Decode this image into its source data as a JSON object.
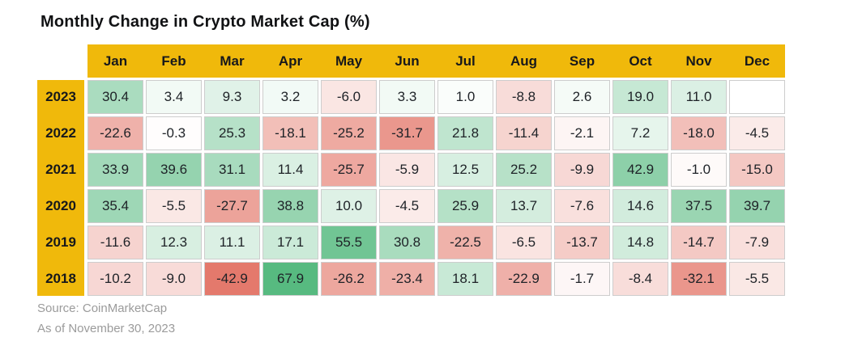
{
  "title": "Monthly Change in Crypto Market Cap (%)",
  "footer": {
    "source": "Source: CoinMarketCap",
    "as_of": "As of November 30, 2023"
  },
  "colors": {
    "header_gold": "#F0B90B",
    "positive_max_color": "#57BA80",
    "negative_max_color": "#E4796C",
    "neutral_color": "#FFFFFF",
    "empty_color": "#FFFFFF",
    "cell_border": "#CDCDCD",
    "number_text": "#1E2227",
    "label_text": "#17181B",
    "footer_gray": "#9B9B9B"
  },
  "chart_data": {
    "type": "heatmap",
    "title": "Monthly Change in Crypto Market Cap (%)",
    "columns": [
      "Jan",
      "Feb",
      "Mar",
      "Apr",
      "May",
      "Jun",
      "Jul",
      "Aug",
      "Sep",
      "Oct",
      "Nov",
      "Dec"
    ],
    "rows": [
      "2023",
      "2022",
      "2021",
      "2020",
      "2019",
      "2018"
    ],
    "values": [
      [
        30.4,
        3.4,
        9.3,
        3.2,
        -6.0,
        3.3,
        1.0,
        -8.8,
        2.6,
        19.0,
        11.0,
        null
      ],
      [
        -22.6,
        -0.3,
        25.3,
        -18.1,
        -25.2,
        -31.7,
        21.8,
        -11.4,
        -2.1,
        7.2,
        -18.0,
        -4.5
      ],
      [
        33.9,
        39.6,
        31.1,
        11.4,
        -25.7,
        -5.9,
        12.5,
        25.2,
        -9.9,
        42.9,
        -1.0,
        -15.0
      ],
      [
        35.4,
        -5.5,
        -27.7,
        38.8,
        10.0,
        -4.5,
        25.9,
        13.7,
        -7.6,
        14.6,
        37.5,
        39.7
      ],
      [
        -11.6,
        12.3,
        11.1,
        17.1,
        55.5,
        30.8,
        -22.5,
        -6.5,
        -13.7,
        14.8,
        -14.7,
        -7.9
      ],
      [
        -10.2,
        -9.0,
        -42.9,
        67.9,
        -26.2,
        -23.4,
        18.1,
        -22.9,
        -1.7,
        -8.4,
        -32.1,
        -5.5
      ]
    ],
    "value_format": "one_decimal",
    "color_scale": {
      "min_value": -42.9,
      "mid_value": 0,
      "max_value": 67.9,
      "negative_max_color": "#E4796C",
      "neutral_color": "#FFFFFF",
      "positive_max_color": "#57BA80"
    },
    "legend_position": "none",
    "grid": "gapped-cells"
  }
}
